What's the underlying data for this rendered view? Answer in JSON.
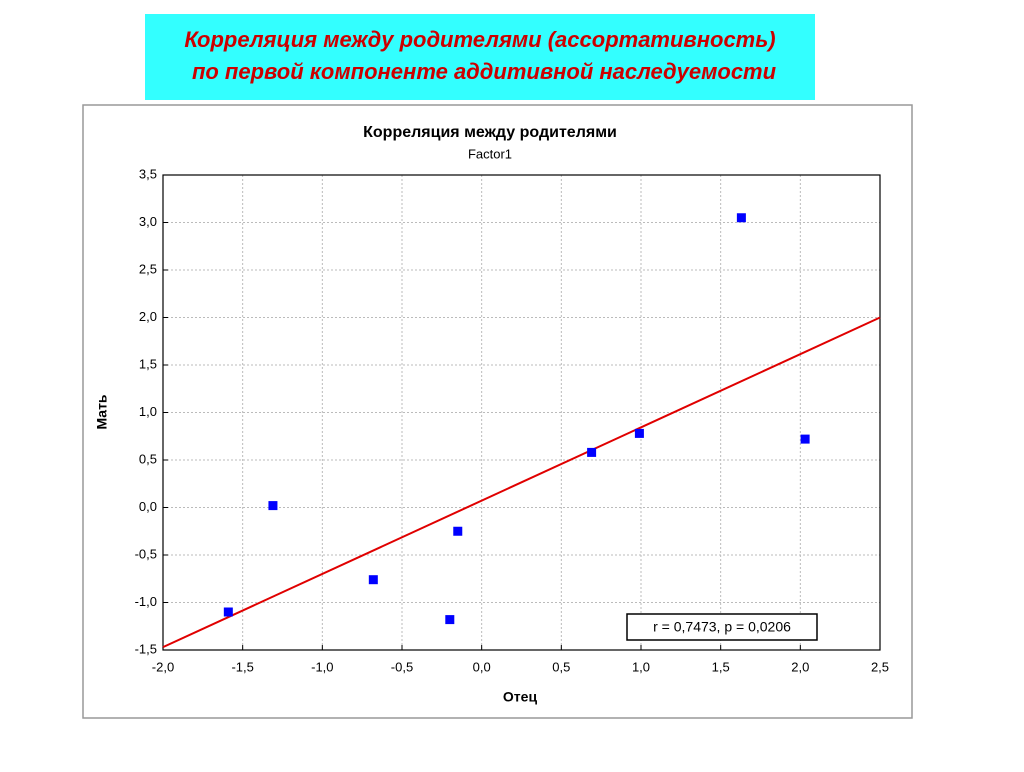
{
  "slide_title": [
    "Корреляция между родителями (ассортативность)",
    "по первой компоненте аддитивной наследуемости"
  ],
  "chart_data": {
    "type": "scatter",
    "title": "Корреляция между родителями",
    "subtitle": "Factor1",
    "x_label": "Отец",
    "y_label": "Мать",
    "series": [
      {
        "color": "#0000ff",
        "x": [
          -1.59,
          -1.31,
          -0.68,
          -0.2,
          -0.15,
          0.69,
          0.99,
          1.63,
          2.03
        ],
        "values": [
          -1.1,
          0.02,
          -0.76,
          -1.18,
          -0.25,
          0.58,
          0.78,
          3.05,
          0.72
        ]
      }
    ],
    "fit": {
      "color": "#e00000",
      "x": [
        -2,
        2.5
      ],
      "y": [
        -1.47,
        2.0
      ]
    },
    "annotation": "r = 0,7473, p = 0,0206",
    "xlim": [
      -2,
      2.5
    ],
    "xticks": [
      {
        "value": -2,
        "label": "-2,0"
      },
      {
        "value": -1.5,
        "label": "-1,5"
      },
      {
        "value": -1,
        "label": "-1,0"
      },
      {
        "value": -0.5,
        "label": "-0,5"
      },
      {
        "value": 0,
        "label": "0,0"
      },
      {
        "value": 0.5,
        "label": "0,5"
      },
      {
        "value": 1,
        "label": "1,0"
      },
      {
        "value": 1.5,
        "label": "1,5"
      },
      {
        "value": 2,
        "label": "2,0"
      },
      {
        "value": 2.5,
        "label": "2,5"
      }
    ],
    "ylim": [
      -1.5,
      3.5
    ],
    "yticks": [
      {
        "value": -1.5,
        "label": "-1,5"
      },
      {
        "value": -1,
        "label": "-1,0"
      },
      {
        "value": -0.5,
        "label": "-0,5"
      },
      {
        "value": 0,
        "label": "0,0"
      },
      {
        "value": 0.5,
        "label": "0,5"
      },
      {
        "value": 1,
        "label": "1,0"
      },
      {
        "value": 1.5,
        "label": "1,5"
      },
      {
        "value": 2,
        "label": "2,0"
      },
      {
        "value": 2.5,
        "label": "2,5"
      },
      {
        "value": 3,
        "label": "3,0"
      },
      {
        "value": 3.5,
        "label": "3,5"
      }
    ],
    "grid": true
  }
}
